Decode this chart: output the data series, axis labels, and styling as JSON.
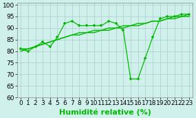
{
  "xlabel": "Humidité relative (%)",
  "background_color": "#cff0eb",
  "grid_color": "#aacccc",
  "line_color": "#00bb00",
  "xlim": [
    -0.5,
    23.5
  ],
  "ylim": [
    60,
    101
  ],
  "yticks": [
    60,
    65,
    70,
    75,
    80,
    85,
    90,
    95,
    100
  ],
  "xticks": [
    0,
    1,
    2,
    3,
    4,
    5,
    6,
    7,
    8,
    9,
    10,
    11,
    12,
    13,
    14,
    15,
    16,
    17,
    18,
    19,
    20,
    21,
    22,
    23
  ],
  "series1_x": [
    0,
    1,
    2,
    3,
    4,
    5,
    6,
    7,
    8,
    9,
    10,
    11,
    12,
    13,
    14,
    15,
    16,
    17,
    18,
    19,
    20,
    21,
    22,
    23
  ],
  "series1_y": [
    81,
    80,
    82,
    84,
    82,
    86,
    92,
    93,
    91,
    91,
    91,
    91,
    93,
    92,
    89,
    68,
    68,
    77,
    86,
    94,
    95,
    95,
    96,
    96
  ],
  "trend1_x": [
    0,
    1,
    2,
    3,
    4,
    5,
    6,
    7,
    8,
    9,
    10,
    11,
    12,
    13,
    14,
    15,
    16,
    17,
    18,
    19,
    20,
    21,
    22,
    23
  ],
  "trend1_y": [
    80,
    81,
    82,
    83,
    84,
    85,
    86,
    87,
    87,
    88,
    88,
    89,
    89,
    90,
    90,
    91,
    91,
    92,
    93,
    93,
    94,
    94,
    95,
    95
  ],
  "trend2_x": [
    0,
    1,
    2,
    3,
    4,
    5,
    6,
    7,
    8,
    9,
    10,
    11,
    12,
    13,
    14,
    15,
    16,
    17,
    18,
    19,
    20,
    21,
    22,
    23
  ],
  "trend2_y": [
    81,
    81,
    82,
    83,
    84,
    85,
    86,
    87,
    88,
    88,
    89,
    89,
    90,
    90,
    91,
    91,
    92,
    92,
    93,
    93,
    94,
    95,
    95,
    96
  ],
  "xlabel_fontsize": 8,
  "tick_fontsize": 6.5
}
